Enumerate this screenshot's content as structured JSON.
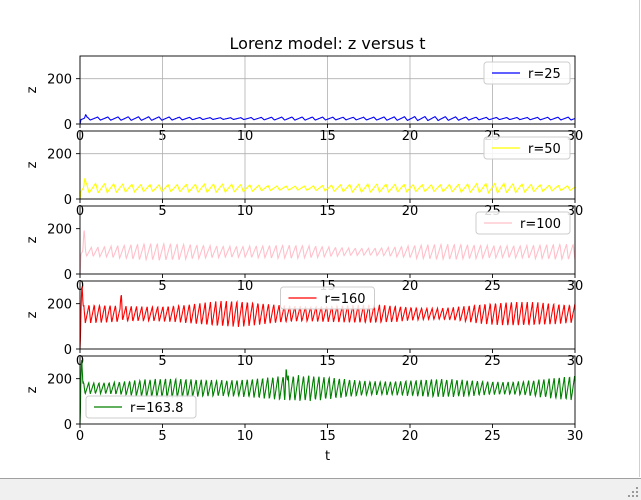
{
  "chart_data": {
    "type": "line",
    "title": "Lorenz model: z versus t",
    "xlabel": "t",
    "ylabel": "z",
    "xlim": [
      0,
      30
    ],
    "ylim": [
      0,
      300
    ],
    "xticks": [
      "0",
      "5",
      "10",
      "15",
      "20",
      "25",
      "30"
    ],
    "yticks": [
      "0",
      "200"
    ],
    "subplots": [
      {
        "name": "r=25",
        "color": "#0000ff",
        "grid": true,
        "legend": "upper right",
        "mean": 24,
        "amplitude": 9,
        "period": 0.62,
        "spikes": [
          {
            "t": 0.35,
            "z": 42
          }
        ]
      },
      {
        "name": "r=50",
        "color": "#ffff00",
        "grid": true,
        "legend": "upper right",
        "mean": 48,
        "amplitude": 22,
        "period": 0.55,
        "spikes": [
          {
            "t": 0.3,
            "z": 92
          }
        ]
      },
      {
        "name": "r=100",
        "color": "#ffc0cb",
        "grid": false,
        "legend": "upper right",
        "mean": 98,
        "amplitude": 38,
        "period": 0.4,
        "spikes": [
          {
            "t": 0.25,
            "z": 200
          }
        ]
      },
      {
        "name": "r=160",
        "color": "#ff0000",
        "grid": false,
        "legend": "upper center",
        "mean": 155,
        "amplitude": 58,
        "period": 0.32,
        "spikes": [
          {
            "t": 0.12,
            "z": 290
          },
          {
            "t": 2.5,
            "z": 245
          }
        ]
      },
      {
        "name": "r=163.8",
        "color": "#008000",
        "grid": false,
        "legend": "lower left",
        "mean": 158,
        "amplitude": 58,
        "period": 0.31,
        "spikes": [
          {
            "t": 0.1,
            "z": 295
          },
          {
            "t": 12.5,
            "z": 250
          }
        ]
      }
    ]
  }
}
